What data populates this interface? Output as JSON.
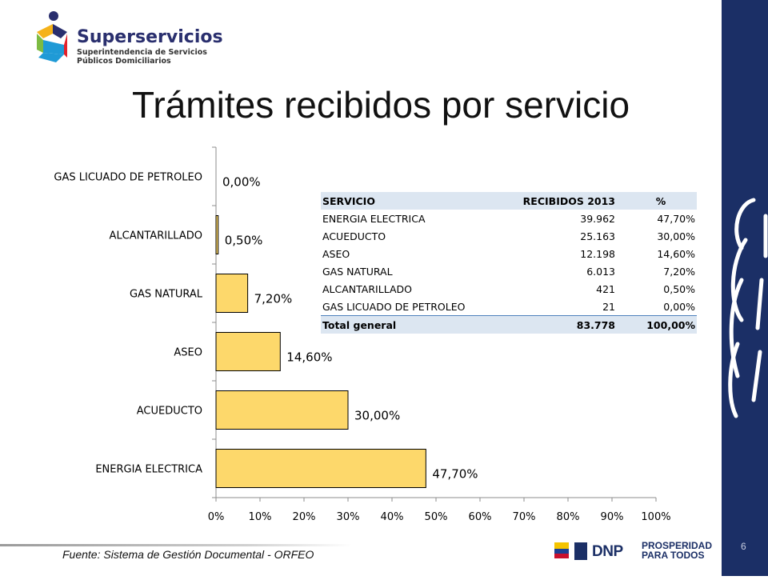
{
  "logo": {
    "name": "Superservicios",
    "line1": "Superintendencia de Servicios",
    "line2": "Públicos Domiciliarios"
  },
  "slide": {
    "title": "Trámites recibidos por servicio",
    "source": "Fuente: Sistema de Gestión Documental - ORFEO",
    "page_number": "6"
  },
  "footer": {
    "dnp": "DNP",
    "prosperidad_line1": "PROSPERIDAD",
    "prosperidad_line2": "PARA TODOS"
  },
  "colors": {
    "bar_fill": "#fdd86b",
    "bar_stroke": "#000000",
    "sidebar": "#1b2f66",
    "table_header": "#dce6f1"
  },
  "chart_data": {
    "type": "bar",
    "orientation": "horizontal",
    "categories": [
      "GAS LICUADO DE PETROLEO",
      "ALCANTARILLADO",
      "GAS NATURAL",
      "ASEO",
      "ACUEDUCTO",
      "ENERGIA ELECTRICA"
    ],
    "values": [
      0.0,
      0.5,
      7.2,
      14.6,
      30.0,
      47.7
    ],
    "data_labels": [
      "0,00%",
      "0,50%",
      "7,20%",
      "14,60%",
      "30,00%",
      "47,70%"
    ],
    "x_ticks": [
      "0%",
      "10%",
      "20%",
      "30%",
      "40%",
      "50%",
      "60%",
      "70%",
      "80%",
      "90%",
      "100%"
    ],
    "xlim": [
      0,
      100
    ],
    "grid": false,
    "legend": "none"
  },
  "table": {
    "headers": [
      "SERVICIO",
      "RECIBIDOS 2013",
      "%"
    ],
    "rows": [
      [
        "ENERGIA ELECTRICA",
        "39.962",
        "47,70%"
      ],
      [
        "ACUEDUCTO",
        "25.163",
        "30,00%"
      ],
      [
        "ASEO",
        "12.198",
        "14,60%"
      ],
      [
        "GAS NATURAL",
        "6.013",
        "7,20%"
      ],
      [
        "ALCANTARILLADO",
        "421",
        "0,50%"
      ],
      [
        "GAS LICUADO DE PETROLEO",
        "21",
        "0,00%"
      ]
    ],
    "total": [
      "Total general",
      "83.778",
      "100,00%"
    ]
  }
}
